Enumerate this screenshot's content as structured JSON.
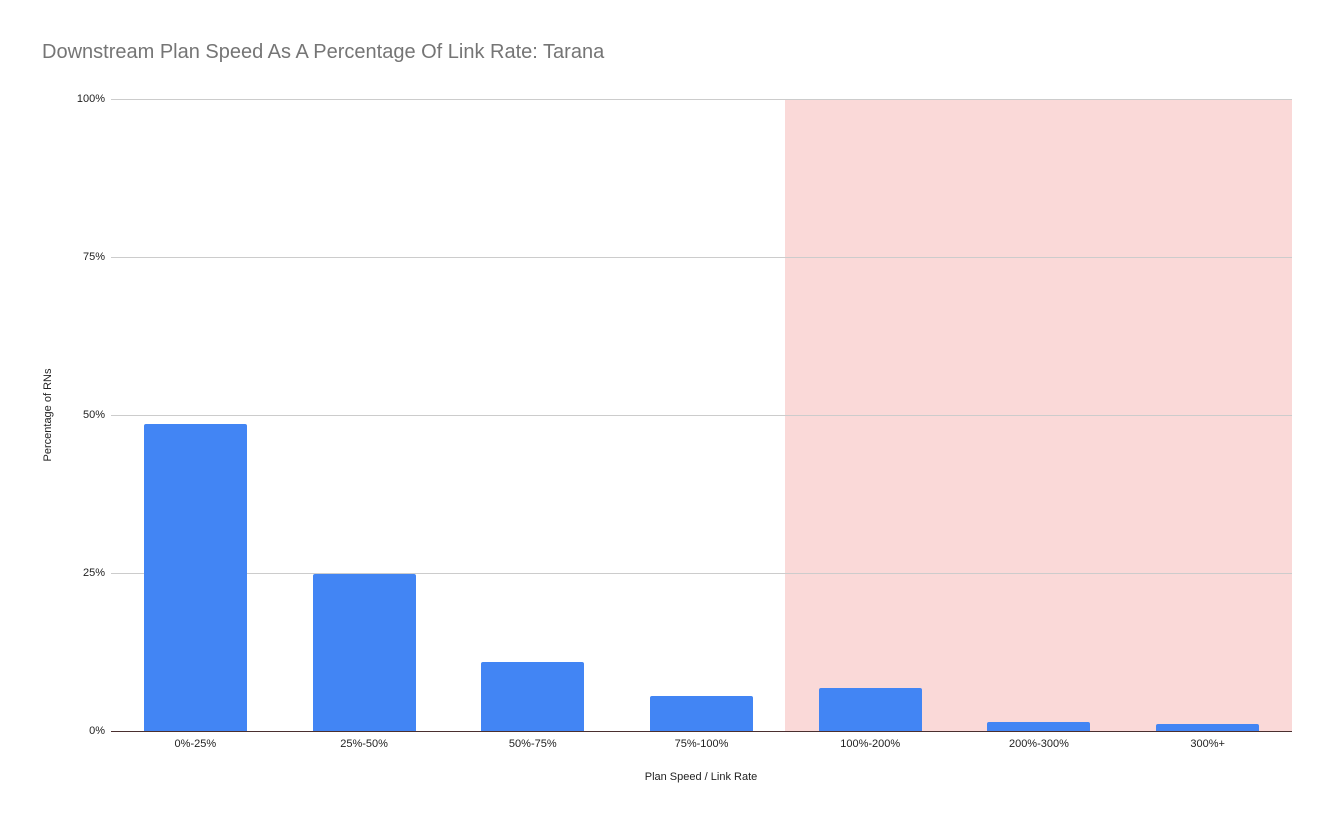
{
  "chart_data": {
    "type": "bar",
    "title": "Downstream Plan Speed As A Percentage Of Link Rate: Tarana",
    "xlabel": "Plan Speed / Link Rate",
    "ylabel": "Percentage of RNs",
    "categories": [
      "0%-25%",
      "25%-50%",
      "50%-75%",
      "75%-100%",
      "100%-200%",
      "200%-300%",
      "300%+"
    ],
    "values": [
      48.6,
      24.8,
      10.9,
      5.5,
      6.8,
      1.4,
      1.1
    ],
    "ylim": [
      0,
      100
    ],
    "yticks": [
      "0%",
      "25%",
      "50%",
      "75%",
      "100%"
    ],
    "grid": true,
    "legend": null,
    "bar_color": "#4285f4",
    "annotations": [
      {
        "type": "shaded-region",
        "from_category": "100%-200%",
        "to_category": "300%+",
        "color": "#fad9d8"
      }
    ]
  }
}
